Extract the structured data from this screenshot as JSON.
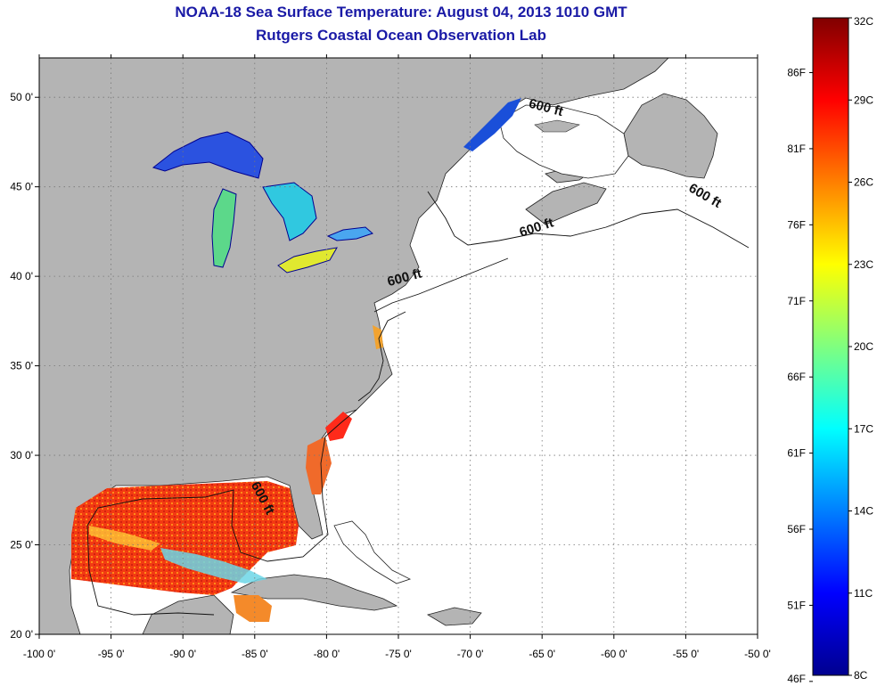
{
  "title": "NOAA-18 Sea Surface Temperature:  August 04, 2013 1010 GMT",
  "subtitle": "Rutgers Coastal Ocean Observation Lab",
  "colors": {
    "land": "#b4b4b4",
    "ocean": "#ffffff",
    "grid": "#777777",
    "title": "#1a1aa6"
  },
  "map": {
    "lon_range": [
      -100,
      -50
    ],
    "lat_range": [
      20,
      52.2
    ],
    "lon_ticks": [
      {
        "value": -100,
        "label": "-100 0'"
      },
      {
        "value": -95,
        "label": "-95 0'"
      },
      {
        "value": -90,
        "label": "-90 0'"
      },
      {
        "value": -85,
        "label": "-85 0'"
      },
      {
        "value": -80,
        "label": "-80 0'"
      },
      {
        "value": -75,
        "label": "-75 0'"
      },
      {
        "value": -70,
        "label": "-70 0'"
      },
      {
        "value": -65,
        "label": "-65 0'"
      },
      {
        "value": -60,
        "label": "-60 0'"
      },
      {
        "value": -55,
        "label": "-55 0'"
      },
      {
        "value": -50,
        "label": "-50 0'"
      }
    ],
    "lat_ticks": [
      {
        "value": 20,
        "label": "20 0'"
      },
      {
        "value": 25,
        "label": "25 0'"
      },
      {
        "value": 30,
        "label": "30 0'"
      },
      {
        "value": 35,
        "label": "35 0'"
      },
      {
        "value": 40,
        "label": "40 0'"
      },
      {
        "value": 45,
        "label": "45 0'"
      },
      {
        "value": 50,
        "label": "50 0'"
      }
    ],
    "isobath_labels": [
      {
        "text": "600 ft",
        "lon": -64.8,
        "lat": 49.2,
        "angle": 15
      },
      {
        "text": "600 ft",
        "lon": -53.8,
        "lat": 44.3,
        "angle": 30
      },
      {
        "text": "600 ft",
        "lon": -65.3,
        "lat": 42.5,
        "angle": -18
      },
      {
        "text": "600 ft",
        "lon": -74.5,
        "lat": 39.7,
        "angle": -15
      },
      {
        "text": "600 ft",
        "lon": -84.7,
        "lat": 27.5,
        "angle": 62
      }
    ]
  },
  "colorbar": {
    "range_c": [
      8,
      32
    ],
    "celsius_labels": [
      {
        "value": 32,
        "label": "32C"
      },
      {
        "value": 29,
        "label": "29C"
      },
      {
        "value": 26,
        "label": "26C"
      },
      {
        "value": 23,
        "label": "23C"
      },
      {
        "value": 20,
        "label": "20C"
      },
      {
        "value": 17,
        "label": "17C"
      },
      {
        "value": 14,
        "label": "14C"
      },
      {
        "value": 11,
        "label": "11C"
      },
      {
        "value": 8,
        "label": "8C"
      }
    ],
    "fahrenheit_labels": [
      {
        "value": 86,
        "label": "86F"
      },
      {
        "value": 81,
        "label": "81F"
      },
      {
        "value": 76,
        "label": "76F"
      },
      {
        "value": 71,
        "label": "71F"
      },
      {
        "value": 66,
        "label": "66F"
      },
      {
        "value": 61,
        "label": "61F"
      },
      {
        "value": 56,
        "label": "56F"
      },
      {
        "value": 51,
        "label": "51F"
      },
      {
        "value": 46,
        "label": "46F"
      }
    ]
  }
}
